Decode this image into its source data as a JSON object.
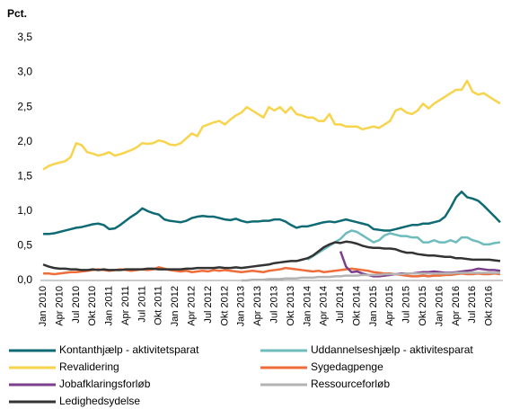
{
  "chart_data": {
    "type": "line",
    "title": "Pct.",
    "categories": [
      "Jan 2010",
      null,
      null,
      "Apr 2010",
      null,
      null,
      "Jul 2010",
      null,
      null,
      "Okt 2010",
      null,
      null,
      "Jan 2011",
      null,
      null,
      "Apr 2011",
      null,
      null,
      "Jul 2011",
      null,
      null,
      "Okt 2011",
      null,
      null,
      "Jan 2012",
      null,
      null,
      "Apr 2012",
      null,
      null,
      "Jul 2012",
      null,
      null,
      "Okt 2012",
      null,
      null,
      "Jan 2013",
      null,
      null,
      "Apr 2013",
      null,
      null,
      "Jul 2013",
      null,
      null,
      "Okt 2013",
      null,
      null,
      "Jan 2014",
      null,
      null,
      "Apr 2014",
      null,
      null,
      "Jul 2014",
      null,
      null,
      "Okt 2014",
      null,
      null,
      "Jan 2015",
      null,
      null,
      "Apr 2015",
      null,
      null,
      "Jul 2015",
      null,
      null,
      "Okt 2015",
      null,
      null,
      "Jan 2016",
      null,
      null,
      "Apr 2016",
      null,
      null,
      "Jul 2016",
      null,
      null,
      "Okt 2016",
      null,
      null
    ],
    "ylim": [
      0,
      3.5
    ],
    "yticks": [
      {
        "value": 0,
        "label": "0,0"
      },
      {
        "value": 0.5,
        "label": "0,5"
      },
      {
        "value": 1,
        "label": "1,0"
      },
      {
        "value": 1.5,
        "label": "1,5"
      },
      {
        "value": 2,
        "label": "2,0"
      },
      {
        "value": 2.5,
        "label": "2,5"
      },
      {
        "value": 3,
        "label": "3,0"
      },
      {
        "value": 3.5,
        "label": "3,5"
      }
    ],
    "grid": false,
    "series": [
      {
        "name": "Kontanthjælp - aktivitetsparat",
        "color": "#0e6a73",
        "values": [
          0.67,
          0.67,
          0.68,
          0.7,
          0.72,
          0.74,
          0.76,
          0.77,
          0.79,
          0.81,
          0.82,
          0.8,
          0.74,
          0.75,
          0.8,
          0.86,
          0.92,
          0.97,
          1.04,
          1.0,
          0.97,
          0.95,
          0.88,
          0.86,
          0.85,
          0.84,
          0.86,
          0.9,
          0.92,
          0.93,
          0.92,
          0.92,
          0.9,
          0.88,
          0.87,
          0.89,
          0.86,
          0.84,
          0.85,
          0.85,
          0.86,
          0.86,
          0.88,
          0.88,
          0.85,
          0.8,
          0.76,
          0.78,
          0.78,
          0.8,
          0.82,
          0.84,
          0.85,
          0.84,
          0.86,
          0.88,
          0.86,
          0.84,
          0.82,
          0.8,
          0.74,
          0.73,
          0.72,
          0.72,
          0.74,
          0.76,
          0.78,
          0.8,
          0.8,
          0.82,
          0.82,
          0.84,
          0.86,
          0.92,
          1.05,
          1.2,
          1.28,
          1.2,
          1.18,
          1.15,
          1.08,
          1.0,
          0.92,
          0.84
        ]
      },
      {
        "name": "Uddannelseshjælp - aktivitesparat",
        "color": "#6fbcbc",
        "values": [
          null,
          null,
          null,
          null,
          null,
          null,
          null,
          null,
          null,
          null,
          null,
          null,
          null,
          null,
          null,
          null,
          null,
          null,
          null,
          null,
          null,
          null,
          null,
          null,
          null,
          null,
          null,
          null,
          null,
          null,
          null,
          null,
          null,
          null,
          null,
          null,
          null,
          null,
          null,
          null,
          null,
          null,
          null,
          null,
          null,
          null,
          null,
          null,
          0.3,
          0.35,
          0.4,
          0.45,
          0.5,
          0.55,
          0.6,
          0.68,
          0.72,
          0.7,
          0.65,
          0.6,
          0.55,
          0.58,
          0.65,
          0.68,
          0.66,
          0.64,
          0.64,
          0.62,
          0.62,
          0.55,
          0.55,
          0.58,
          0.55,
          0.55,
          0.58,
          0.55,
          0.62,
          0.62,
          0.58,
          0.56,
          0.52,
          0.52,
          0.54,
          0.55
        ]
      },
      {
        "name": "Revalidering",
        "color": "#f7d44c",
        "values": [
          1.6,
          1.65,
          1.68,
          1.7,
          1.72,
          1.78,
          1.98,
          1.95,
          1.85,
          1.83,
          1.8,
          1.82,
          1.85,
          1.8,
          1.82,
          1.85,
          1.88,
          1.92,
          1.98,
          1.97,
          1.98,
          2.02,
          2.0,
          1.96,
          1.95,
          1.98,
          2.05,
          2.12,
          2.08,
          2.22,
          2.25,
          2.28,
          2.3,
          2.25,
          2.32,
          2.38,
          2.42,
          2.5,
          2.45,
          2.4,
          2.35,
          2.5,
          2.45,
          2.5,
          2.42,
          2.5,
          2.4,
          2.38,
          2.35,
          2.35,
          2.3,
          2.3,
          2.4,
          2.25,
          2.25,
          2.22,
          2.22,
          2.22,
          2.18,
          2.2,
          2.22,
          2.2,
          2.25,
          2.3,
          2.45,
          2.48,
          2.42,
          2.4,
          2.45,
          2.55,
          2.48,
          2.55,
          2.6,
          2.65,
          2.7,
          2.75,
          2.75,
          2.88,
          2.72,
          2.68,
          2.7,
          2.65,
          2.6,
          2.55
        ]
      },
      {
        "name": "Sygedagpenge",
        "color": "#ee6d3a",
        "values": [
          0.1,
          0.1,
          0.09,
          0.1,
          0.11,
          0.12,
          0.12,
          0.13,
          0.14,
          0.15,
          0.16,
          0.15,
          0.14,
          0.15,
          0.16,
          0.15,
          0.14,
          0.15,
          0.16,
          0.15,
          0.16,
          0.19,
          0.17,
          0.15,
          0.14,
          0.13,
          0.14,
          0.12,
          0.13,
          0.14,
          0.13,
          0.15,
          0.14,
          0.15,
          0.14,
          0.13,
          0.12,
          0.13,
          0.14,
          0.13,
          0.12,
          0.14,
          0.15,
          0.16,
          0.18,
          0.17,
          0.16,
          0.15,
          0.14,
          0.13,
          0.14,
          0.12,
          0.13,
          0.14,
          0.15,
          0.16,
          0.17,
          0.16,
          0.15,
          0.14,
          0.12,
          0.11,
          0.1,
          0.1,
          0.09,
          0.08,
          0.07,
          0.06,
          0.06,
          0.07,
          0.06,
          0.07,
          0.07,
          0.08,
          0.08,
          0.09,
          0.1,
          0.09,
          0.09,
          0.1,
          0.09,
          0.09,
          0.1,
          0.09
        ]
      },
      {
        "name": "Jobafklaringsforløb",
        "color": "#7b3f8c",
        "values": [
          null,
          null,
          null,
          null,
          null,
          null,
          null,
          null,
          null,
          null,
          null,
          null,
          null,
          null,
          null,
          null,
          null,
          null,
          null,
          null,
          null,
          null,
          null,
          null,
          null,
          null,
          null,
          null,
          null,
          null,
          null,
          null,
          null,
          null,
          null,
          null,
          null,
          null,
          null,
          null,
          null,
          null,
          null,
          null,
          null,
          null,
          null,
          null,
          null,
          null,
          null,
          null,
          null,
          null,
          0.42,
          0.2,
          0.12,
          0.13,
          0.1,
          0.08,
          0.06,
          0.06,
          0.07,
          0.08,
          0.09,
          0.1,
          0.1,
          0.1,
          0.11,
          0.12,
          0.12,
          0.13,
          0.12,
          0.11,
          0.11,
          0.12,
          0.13,
          0.14,
          0.15,
          0.17,
          0.16,
          0.15,
          0.15,
          0.14
        ]
      },
      {
        "name": "Ressourceforløb",
        "color": "#b3b3b3",
        "values": [
          null,
          null,
          null,
          null,
          null,
          null,
          null,
          null,
          null,
          null,
          null,
          null,
          null,
          null,
          null,
          null,
          null,
          null,
          null,
          null,
          null,
          null,
          null,
          null,
          null,
          null,
          null,
          null,
          null,
          null,
          null,
          null,
          null,
          null,
          null,
          null,
          0.0,
          0.0,
          0.01,
          0.01,
          0.01,
          0.02,
          0.02,
          0.02,
          0.03,
          0.03,
          0.03,
          0.04,
          0.04,
          0.04,
          0.05,
          0.05,
          0.05,
          0.06,
          0.06,
          0.07,
          0.07,
          0.07,
          0.08,
          0.08,
          0.08,
          0.08,
          0.09,
          0.09,
          0.09,
          0.09,
          0.1,
          0.1,
          0.1,
          0.1,
          0.1,
          0.1,
          0.1,
          0.1,
          0.1,
          0.11,
          0.11,
          0.11,
          0.11,
          0.11,
          0.11,
          0.11,
          0.11,
          0.11
        ]
      },
      {
        "name": "Ledighedsydelse",
        "color": "#333333",
        "values": [
          0.23,
          0.2,
          0.18,
          0.17,
          0.17,
          0.16,
          0.16,
          0.15,
          0.15,
          0.16,
          0.15,
          0.16,
          0.15,
          0.15,
          0.15,
          0.16,
          0.16,
          0.16,
          0.16,
          0.17,
          0.17,
          0.16,
          0.16,
          0.16,
          0.16,
          0.16,
          0.17,
          0.17,
          0.18,
          0.18,
          0.18,
          0.18,
          0.19,
          0.18,
          0.18,
          0.19,
          0.18,
          0.19,
          0.2,
          0.21,
          0.22,
          0.23,
          0.25,
          0.26,
          0.27,
          0.28,
          0.28,
          0.3,
          0.32,
          0.36,
          0.42,
          0.48,
          0.52,
          0.55,
          0.54,
          0.56,
          0.55,
          0.53,
          0.5,
          0.48,
          0.47,
          0.47,
          0.46,
          0.46,
          0.45,
          0.42,
          0.4,
          0.4,
          0.38,
          0.37,
          0.36,
          0.36,
          0.35,
          0.34,
          0.34,
          0.32,
          0.32,
          0.31,
          0.3,
          0.3,
          0.3,
          0.3,
          0.29,
          0.28
        ]
      }
    ]
  }
}
